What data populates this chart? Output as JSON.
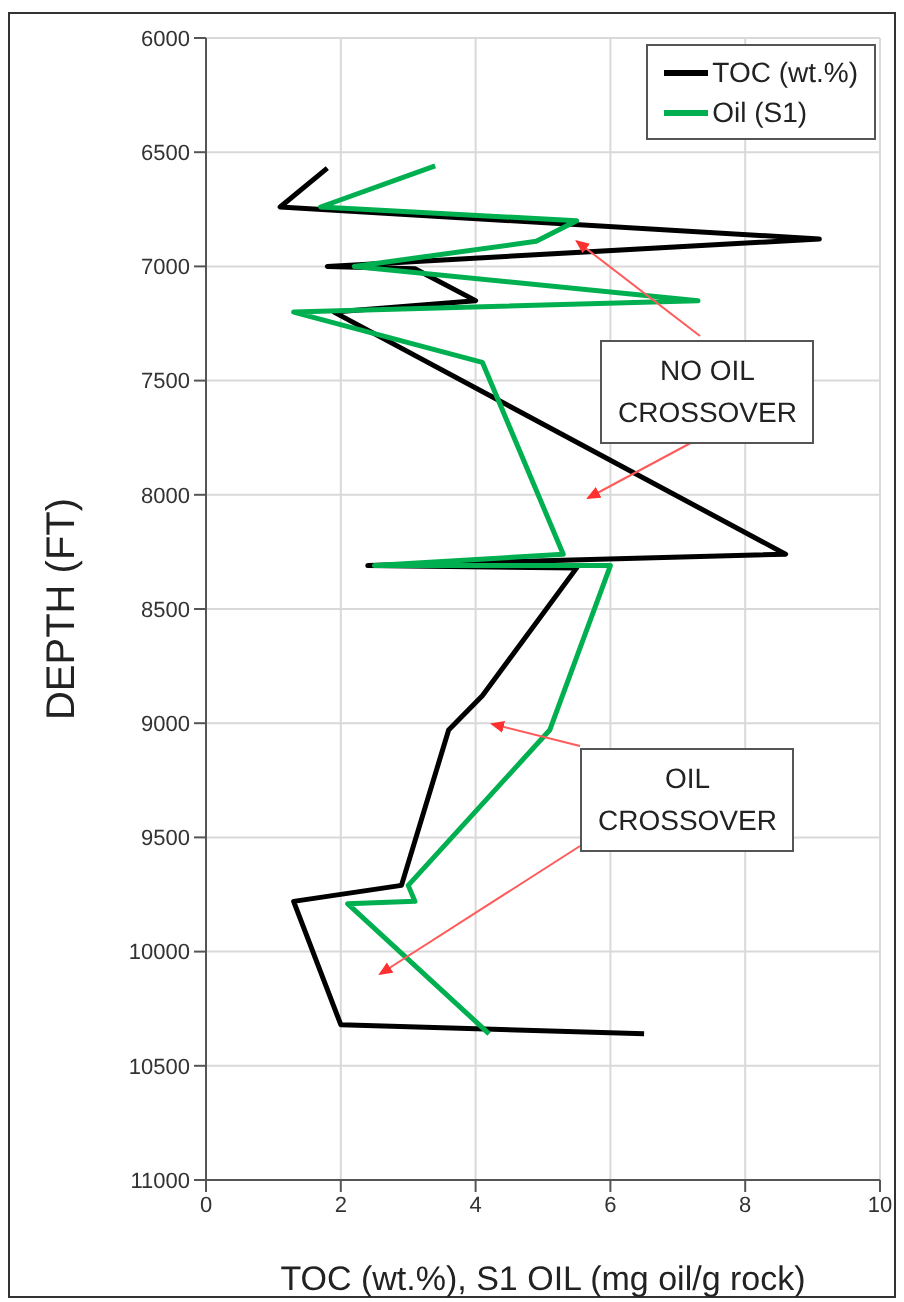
{
  "chart_data": {
    "type": "line",
    "xlabel": "TOC (wt.%),  S1 OIL (mg oil/g rock)",
    "ylabel": "DEPTH (FT)",
    "xlim": [
      0,
      10
    ],
    "xticks": [
      0,
      2,
      4,
      6,
      8,
      10
    ],
    "ylim": [
      11000,
      6000
    ],
    "yticks": [
      6000,
      6500,
      7000,
      7500,
      8000,
      8500,
      9000,
      9500,
      10000,
      10500,
      11000
    ],
    "grid": true,
    "legend": "top right",
    "marker": "none",
    "line_style": "solid",
    "series": [
      {
        "name": "TOC (wt.%)",
        "color": "#000000",
        "x": [
          1.8,
          1.1,
          9.1,
          1.8,
          3.1,
          4.0,
          1.9,
          8.6,
          2.4,
          5.5,
          4.1,
          3.6,
          2.9,
          1.3,
          2.0,
          6.5
        ],
        "values": [
          6570,
          6740,
          6880,
          7000,
          7010,
          7150,
          7200,
          8260,
          8310,
          8320,
          8880,
          9030,
          9710,
          9780,
          10320,
          10360
        ]
      },
      {
        "name": "Oil (S1)",
        "color": "#00b050",
        "x": [
          3.4,
          1.7,
          5.5,
          4.9,
          2.2,
          7.3,
          1.3,
          4.1,
          5.3,
          2.5,
          6.0,
          5.1,
          3.0,
          3.1,
          2.1,
          4.2
        ],
        "values": [
          6560,
          6740,
          6800,
          6890,
          7000,
          7150,
          7200,
          7420,
          8260,
          8310,
          8310,
          9030,
          9710,
          9780,
          9790,
          10360
        ]
      }
    ],
    "annotations": [
      {
        "text": "NO OIL\nCROSSOVER",
        "x": 5.5,
        "y": 6890
      },
      "OIL\nCROSSOVER"
    ]
  }
}
